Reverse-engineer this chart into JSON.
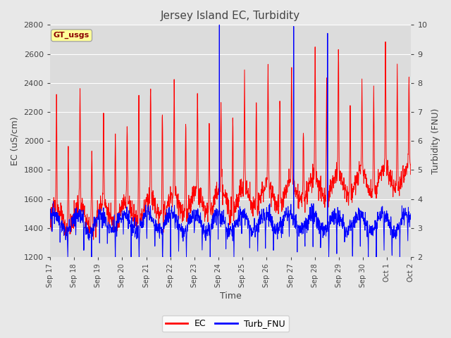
{
  "title": "Jersey Island EC, Turbidity",
  "xlabel": "Time",
  "ylabel_left": "EC (uS/cm)",
  "ylabel_right": "Turbidity (FNU)",
  "ylim_left": [
    1200,
    2800
  ],
  "ylim_right": [
    2.0,
    10.0
  ],
  "yticks_left": [
    1200,
    1400,
    1600,
    1800,
    2000,
    2200,
    2400,
    2600,
    2800
  ],
  "yticks_right": [
    2.0,
    3.0,
    4.0,
    5.0,
    6.0,
    7.0,
    8.0,
    9.0,
    10.0
  ],
  "xtick_labels": [
    "Sep 17",
    "Sep 18",
    "Sep 19",
    "Sep 20",
    "Sep 21",
    "Sep 22",
    "Sep 23",
    "Sep 24",
    "Sep 25",
    "Sep 26",
    "Sep 27",
    "Sep 28",
    "Sep 29",
    "Sep 30",
    "Oct 1",
    "Oct 2"
  ],
  "legend_labels": [
    "EC",
    "Turb_FNU"
  ],
  "gt_usgs_box_color": "#FFFF99",
  "gt_usgs_text_color": "#8B0000",
  "line_color_ec": "red",
  "line_color_turb": "blue",
  "background_color": "#e8e8e8",
  "plot_bg_color": "#dcdcdc",
  "grid_color": "white",
  "figsize": [
    6.4,
    4.8
  ],
  "dpi": 100
}
